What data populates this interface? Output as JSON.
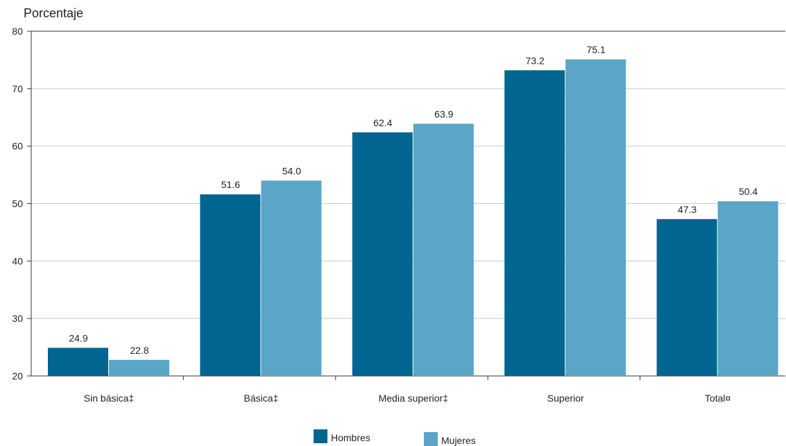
{
  "chart_data": {
    "type": "bar",
    "title": "",
    "xlabel": "",
    "ylabel": "Porcentaje",
    "ylim": [
      20,
      80
    ],
    "yticks": [
      20,
      30,
      40,
      50,
      60,
      70,
      80
    ],
    "grid": true,
    "legend_position": "bottom-center",
    "categories": [
      "Sin básica‡",
      "Básica‡",
      "Media superior‡",
      "Superior",
      "Total¤"
    ],
    "series": [
      {
        "name": "Hombres",
        "color": "#006591",
        "values": [
          24.9,
          51.6,
          62.4,
          73.2,
          47.3
        ]
      },
      {
        "name": "Mujeres",
        "color": "#5ba5c6",
        "values": [
          22.8,
          54.0,
          63.9,
          75.1,
          50.4
        ]
      }
    ]
  }
}
